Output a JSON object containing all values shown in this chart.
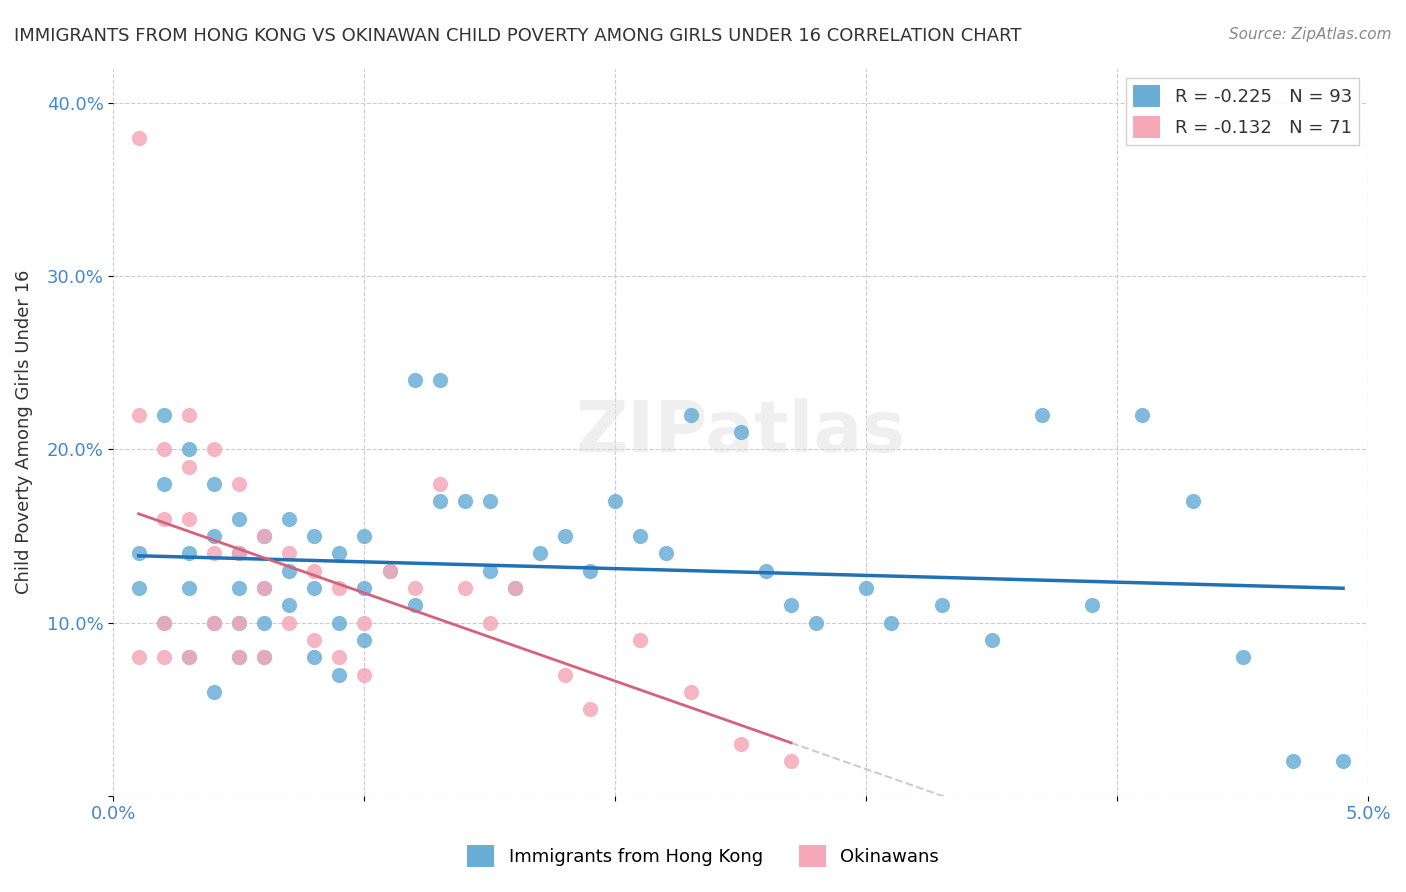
{
  "title": "IMMIGRANTS FROM HONG KONG VS OKINAWAN CHILD POVERTY AMONG GIRLS UNDER 16 CORRELATION CHART",
  "source": "Source: ZipAtlas.com",
  "xlabel_bottom": "",
  "ylabel": "Child Poverty Among Girls Under 16",
  "legend_label_blue": "Immigrants from Hong Kong",
  "legend_label_pink": "Okinawans",
  "legend_R_blue": "R = -0.225",
  "legend_N_blue": "N = 93",
  "legend_R_pink": "R = -0.132",
  "legend_N_pink": "N = 71",
  "xlim": [
    0.0,
    0.05
  ],
  "ylim": [
    0.0,
    0.42
  ],
  "yticks": [
    0.0,
    0.1,
    0.2,
    0.3,
    0.4
  ],
  "ytick_labels": [
    "",
    "10.0%",
    "20.0%",
    "30.0%",
    "40.0%"
  ],
  "xticks": [
    0.0,
    0.01,
    0.02,
    0.03,
    0.04,
    0.05
  ],
  "xtick_labels": [
    "0.0%",
    "",
    "",
    "",
    "",
    "5.0%"
  ],
  "blue_color": "#6aaed6",
  "pink_color": "#f4a8b8",
  "blue_line_color": "#2171b5",
  "pink_line_color": "#d6617a",
  "watermark": "ZIPatlas",
  "blue_scatter_x": [
    0.001,
    0.001,
    0.002,
    0.002,
    0.002,
    0.003,
    0.003,
    0.003,
    0.003,
    0.004,
    0.004,
    0.004,
    0.004,
    0.005,
    0.005,
    0.005,
    0.005,
    0.005,
    0.006,
    0.006,
    0.006,
    0.006,
    0.007,
    0.007,
    0.007,
    0.008,
    0.008,
    0.008,
    0.009,
    0.009,
    0.009,
    0.01,
    0.01,
    0.01,
    0.011,
    0.012,
    0.012,
    0.013,
    0.013,
    0.014,
    0.015,
    0.015,
    0.016,
    0.017,
    0.018,
    0.019,
    0.02,
    0.021,
    0.022,
    0.023,
    0.025,
    0.026,
    0.027,
    0.028,
    0.03,
    0.031,
    0.033,
    0.035,
    0.037,
    0.039,
    0.041,
    0.043,
    0.045,
    0.047,
    0.049
  ],
  "blue_scatter_y": [
    0.14,
    0.12,
    0.18,
    0.22,
    0.1,
    0.14,
    0.2,
    0.08,
    0.12,
    0.15,
    0.1,
    0.18,
    0.06,
    0.14,
    0.12,
    0.08,
    0.16,
    0.1,
    0.12,
    0.15,
    0.1,
    0.08,
    0.13,
    0.11,
    0.16,
    0.12,
    0.08,
    0.15,
    0.1,
    0.14,
    0.07,
    0.12,
    0.09,
    0.15,
    0.13,
    0.11,
    0.24,
    0.24,
    0.17,
    0.17,
    0.13,
    0.17,
    0.12,
    0.14,
    0.15,
    0.13,
    0.17,
    0.15,
    0.14,
    0.22,
    0.21,
    0.13,
    0.11,
    0.1,
    0.12,
    0.1,
    0.11,
    0.09,
    0.22,
    0.11,
    0.22,
    0.17,
    0.08,
    0.02,
    0.02
  ],
  "pink_scatter_x": [
    0.001,
    0.001,
    0.001,
    0.002,
    0.002,
    0.002,
    0.002,
    0.003,
    0.003,
    0.003,
    0.003,
    0.004,
    0.004,
    0.004,
    0.005,
    0.005,
    0.005,
    0.005,
    0.006,
    0.006,
    0.006,
    0.007,
    0.007,
    0.008,
    0.008,
    0.009,
    0.009,
    0.01,
    0.01,
    0.011,
    0.012,
    0.013,
    0.014,
    0.015,
    0.016,
    0.018,
    0.019,
    0.021,
    0.023,
    0.025,
    0.027
  ],
  "pink_scatter_y": [
    0.38,
    0.22,
    0.08,
    0.2,
    0.16,
    0.1,
    0.08,
    0.22,
    0.19,
    0.16,
    0.08,
    0.2,
    0.14,
    0.1,
    0.18,
    0.14,
    0.1,
    0.08,
    0.15,
    0.12,
    0.08,
    0.14,
    0.1,
    0.13,
    0.09,
    0.12,
    0.08,
    0.1,
    0.07,
    0.13,
    0.12,
    0.18,
    0.12,
    0.1,
    0.12,
    0.07,
    0.05,
    0.09,
    0.06,
    0.03,
    0.02
  ]
}
